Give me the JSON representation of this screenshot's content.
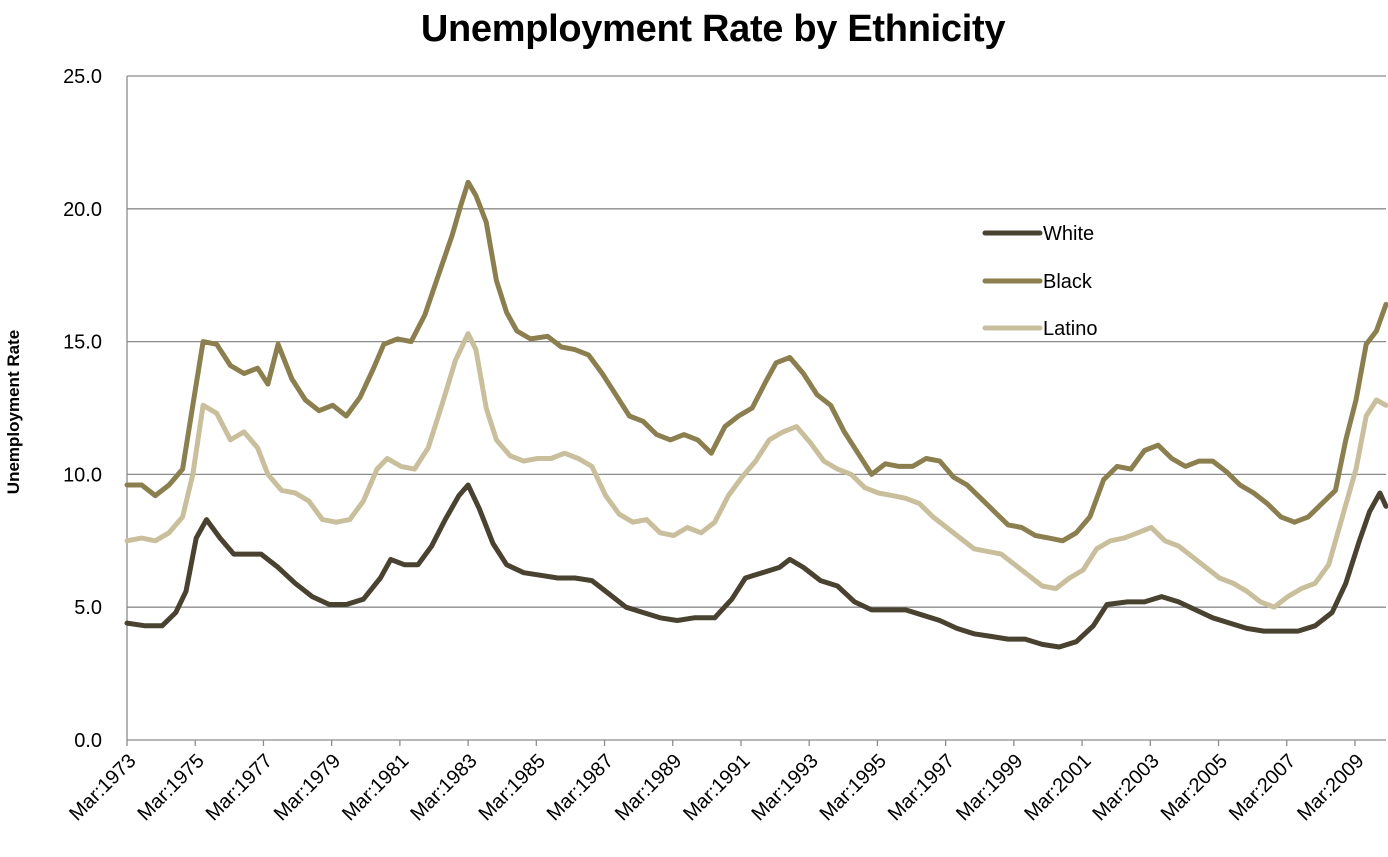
{
  "chart_data": {
    "type": "line",
    "title": "Unemployment Rate by Ethnicity",
    "xlabel": "",
    "ylabel": "Unemployment Rate",
    "ylim": [
      0,
      25
    ],
    "yticks": [
      "0.0",
      "5.0",
      "10.0",
      "15.0",
      "20.0",
      "25.0"
    ],
    "xrange_years": [
      1973.17,
      2010.08
    ],
    "xticks": [
      {
        "label": "Mar:1973",
        "year": 1973.17
      },
      {
        "label": "Mar:1975",
        "year": 1975.17
      },
      {
        "label": "Mar:1977",
        "year": 1977.17
      },
      {
        "label": "Mar:1979",
        "year": 1979.17
      },
      {
        "label": "Mar:1981",
        "year": 1981.17
      },
      {
        "label": "Mar:1983",
        "year": 1983.17
      },
      {
        "label": "Mar:1985",
        "year": 1985.17
      },
      {
        "label": "Mar:1987",
        "year": 1987.17
      },
      {
        "label": "Mar:1989",
        "year": 1989.17
      },
      {
        "label": "Mar:1991",
        "year": 1991.17
      },
      {
        "label": "Mar:1993",
        "year": 1993.17
      },
      {
        "label": "Mar:1995",
        "year": 1995.17
      },
      {
        "label": "Mar:1997",
        "year": 1997.17
      },
      {
        "label": "Mar:1999",
        "year": 1999.17
      },
      {
        "label": "Mar:2001",
        "year": 2001.17
      },
      {
        "label": "Mar:2003",
        "year": 2003.17
      },
      {
        "label": "Mar:2005",
        "year": 2005.17
      },
      {
        "label": "Mar:2007",
        "year": 2007.17
      },
      {
        "label": "Mar:2009",
        "year": 2009.17
      }
    ],
    "grid": true,
    "legend_position": "upper-right",
    "series": [
      {
        "name": "White",
        "color": "#4a4230",
        "points": [
          [
            1973.17,
            4.4
          ],
          [
            1973.7,
            4.3
          ],
          [
            1974.2,
            4.3
          ],
          [
            1974.6,
            4.8
          ],
          [
            1974.9,
            5.6
          ],
          [
            1975.2,
            7.6
          ],
          [
            1975.5,
            8.3
          ],
          [
            1975.9,
            7.6
          ],
          [
            1976.3,
            7.0
          ],
          [
            1976.7,
            7.0
          ],
          [
            1977.1,
            7.0
          ],
          [
            1977.6,
            6.5
          ],
          [
            1978.1,
            5.9
          ],
          [
            1978.6,
            5.4
          ],
          [
            1979.1,
            5.1
          ],
          [
            1979.6,
            5.1
          ],
          [
            1980.1,
            5.3
          ],
          [
            1980.6,
            6.1
          ],
          [
            1980.9,
            6.8
          ],
          [
            1981.3,
            6.6
          ],
          [
            1981.7,
            6.6
          ],
          [
            1982.1,
            7.3
          ],
          [
            1982.5,
            8.3
          ],
          [
            1982.9,
            9.2
          ],
          [
            1983.17,
            9.6
          ],
          [
            1983.5,
            8.7
          ],
          [
            1983.9,
            7.4
          ],
          [
            1984.3,
            6.6
          ],
          [
            1984.8,
            6.3
          ],
          [
            1985.3,
            6.2
          ],
          [
            1985.8,
            6.1
          ],
          [
            1986.3,
            6.1
          ],
          [
            1986.8,
            6.0
          ],
          [
            1987.3,
            5.5
          ],
          [
            1987.8,
            5.0
          ],
          [
            1988.3,
            4.8
          ],
          [
            1988.8,
            4.6
          ],
          [
            1989.3,
            4.5
          ],
          [
            1989.8,
            4.6
          ],
          [
            1990.4,
            4.6
          ],
          [
            1990.9,
            5.3
          ],
          [
            1991.3,
            6.1
          ],
          [
            1991.8,
            6.3
          ],
          [
            1992.3,
            6.5
          ],
          [
            1992.6,
            6.8
          ],
          [
            1993.0,
            6.5
          ],
          [
            1993.5,
            6.0
          ],
          [
            1994.0,
            5.8
          ],
          [
            1994.5,
            5.2
          ],
          [
            1995.0,
            4.9
          ],
          [
            1995.5,
            4.9
          ],
          [
            1996.0,
            4.9
          ],
          [
            1996.5,
            4.7
          ],
          [
            1997.0,
            4.5
          ],
          [
            1997.5,
            4.2
          ],
          [
            1998.0,
            4.0
          ],
          [
            1998.5,
            3.9
          ],
          [
            1999.0,
            3.8
          ],
          [
            1999.5,
            3.8
          ],
          [
            2000.0,
            3.6
          ],
          [
            2000.5,
            3.5
          ],
          [
            2001.0,
            3.7
          ],
          [
            2001.5,
            4.3
          ],
          [
            2001.9,
            5.1
          ],
          [
            2002.5,
            5.2
          ],
          [
            2003.0,
            5.2
          ],
          [
            2003.5,
            5.4
          ],
          [
            2004.0,
            5.2
          ],
          [
            2004.5,
            4.9
          ],
          [
            2005.0,
            4.6
          ],
          [
            2005.5,
            4.4
          ],
          [
            2006.0,
            4.2
          ],
          [
            2006.5,
            4.1
          ],
          [
            2007.0,
            4.1
          ],
          [
            2007.5,
            4.1
          ],
          [
            2008.0,
            4.3
          ],
          [
            2008.5,
            4.8
          ],
          [
            2008.9,
            5.9
          ],
          [
            2009.3,
            7.5
          ],
          [
            2009.6,
            8.6
          ],
          [
            2009.9,
            9.3
          ],
          [
            2010.08,
            8.8
          ]
        ]
      },
      {
        "name": "Black",
        "color": "#8c7f4f",
        "points": [
          [
            1973.17,
            9.6
          ],
          [
            1973.6,
            9.6
          ],
          [
            1974.0,
            9.2
          ],
          [
            1974.4,
            9.6
          ],
          [
            1974.8,
            10.2
          ],
          [
            1975.1,
            12.6
          ],
          [
            1975.4,
            15.0
          ],
          [
            1975.8,
            14.9
          ],
          [
            1976.2,
            14.1
          ],
          [
            1976.6,
            13.8
          ],
          [
            1977.0,
            14.0
          ],
          [
            1977.3,
            13.4
          ],
          [
            1977.6,
            14.9
          ],
          [
            1978.0,
            13.6
          ],
          [
            1978.4,
            12.8
          ],
          [
            1978.8,
            12.4
          ],
          [
            1979.2,
            12.6
          ],
          [
            1979.6,
            12.2
          ],
          [
            1980.0,
            12.9
          ],
          [
            1980.4,
            14.0
          ],
          [
            1980.7,
            14.9
          ],
          [
            1981.1,
            15.1
          ],
          [
            1981.5,
            15.0
          ],
          [
            1981.9,
            16.0
          ],
          [
            1982.3,
            17.5
          ],
          [
            1982.7,
            19.0
          ],
          [
            1982.95,
            20.1
          ],
          [
            1983.17,
            21.0
          ],
          [
            1983.4,
            20.5
          ],
          [
            1983.7,
            19.5
          ],
          [
            1984.0,
            17.3
          ],
          [
            1984.3,
            16.1
          ],
          [
            1984.6,
            15.4
          ],
          [
            1985.0,
            15.1
          ],
          [
            1985.5,
            15.2
          ],
          [
            1985.9,
            14.8
          ],
          [
            1986.3,
            14.7
          ],
          [
            1986.7,
            14.5
          ],
          [
            1987.1,
            13.8
          ],
          [
            1987.5,
            13.0
          ],
          [
            1987.9,
            12.2
          ],
          [
            1988.3,
            12.0
          ],
          [
            1988.7,
            11.5
          ],
          [
            1989.1,
            11.3
          ],
          [
            1989.5,
            11.5
          ],
          [
            1989.9,
            11.3
          ],
          [
            1990.3,
            10.8
          ],
          [
            1990.7,
            11.8
          ],
          [
            1991.1,
            12.2
          ],
          [
            1991.5,
            12.5
          ],
          [
            1991.9,
            13.5
          ],
          [
            1992.2,
            14.2
          ],
          [
            1992.6,
            14.4
          ],
          [
            1993.0,
            13.8
          ],
          [
            1993.4,
            13.0
          ],
          [
            1993.8,
            12.6
          ],
          [
            1994.2,
            11.6
          ],
          [
            1994.6,
            10.8
          ],
          [
            1995.0,
            10.0
          ],
          [
            1995.4,
            10.4
          ],
          [
            1995.8,
            10.3
          ],
          [
            1996.2,
            10.3
          ],
          [
            1996.6,
            10.6
          ],
          [
            1997.0,
            10.5
          ],
          [
            1997.4,
            9.9
          ],
          [
            1997.8,
            9.6
          ],
          [
            1998.2,
            9.1
          ],
          [
            1998.6,
            8.6
          ],
          [
            1999.0,
            8.1
          ],
          [
            1999.4,
            8.0
          ],
          [
            1999.8,
            7.7
          ],
          [
            2000.2,
            7.6
          ],
          [
            2000.6,
            7.5
          ],
          [
            2001.0,
            7.8
          ],
          [
            2001.4,
            8.4
          ],
          [
            2001.8,
            9.8
          ],
          [
            2002.2,
            10.3
          ],
          [
            2002.6,
            10.2
          ],
          [
            2003.0,
            10.9
          ],
          [
            2003.4,
            11.1
          ],
          [
            2003.8,
            10.6
          ],
          [
            2004.2,
            10.3
          ],
          [
            2004.6,
            10.5
          ],
          [
            2005.0,
            10.5
          ],
          [
            2005.4,
            10.1
          ],
          [
            2005.8,
            9.6
          ],
          [
            2006.2,
            9.3
          ],
          [
            2006.6,
            8.9
          ],
          [
            2007.0,
            8.4
          ],
          [
            2007.4,
            8.2
          ],
          [
            2007.8,
            8.4
          ],
          [
            2008.2,
            8.9
          ],
          [
            2008.6,
            9.4
          ],
          [
            2008.9,
            11.3
          ],
          [
            2009.2,
            12.8
          ],
          [
            2009.5,
            14.9
          ],
          [
            2009.8,
            15.4
          ],
          [
            2010.08,
            16.4
          ]
        ]
      },
      {
        "name": "Latino",
        "color": "#c9bf9c",
        "points": [
          [
            1973.17,
            7.5
          ],
          [
            1973.6,
            7.6
          ],
          [
            1974.0,
            7.5
          ],
          [
            1974.4,
            7.8
          ],
          [
            1974.8,
            8.4
          ],
          [
            1975.1,
            10.0
          ],
          [
            1975.4,
            12.6
          ],
          [
            1975.8,
            12.3
          ],
          [
            1976.2,
            11.3
          ],
          [
            1976.6,
            11.6
          ],
          [
            1977.0,
            11.0
          ],
          [
            1977.3,
            10.0
          ],
          [
            1977.7,
            9.4
          ],
          [
            1978.1,
            9.3
          ],
          [
            1978.5,
            9.0
          ],
          [
            1978.9,
            8.3
          ],
          [
            1979.3,
            8.2
          ],
          [
            1979.7,
            8.3
          ],
          [
            1980.1,
            9.0
          ],
          [
            1980.5,
            10.2
          ],
          [
            1980.8,
            10.6
          ],
          [
            1981.2,
            10.3
          ],
          [
            1981.6,
            10.2
          ],
          [
            1982.0,
            11.0
          ],
          [
            1982.4,
            12.6
          ],
          [
            1982.8,
            14.3
          ],
          [
            1983.17,
            15.3
          ],
          [
            1983.4,
            14.7
          ],
          [
            1983.7,
            12.5
          ],
          [
            1984.0,
            11.3
          ],
          [
            1984.4,
            10.7
          ],
          [
            1984.8,
            10.5
          ],
          [
            1985.2,
            10.6
          ],
          [
            1985.6,
            10.6
          ],
          [
            1986.0,
            10.8
          ],
          [
            1986.4,
            10.6
          ],
          [
            1986.8,
            10.3
          ],
          [
            1987.2,
            9.2
          ],
          [
            1987.6,
            8.5
          ],
          [
            1988.0,
            8.2
          ],
          [
            1988.4,
            8.3
          ],
          [
            1988.8,
            7.8
          ],
          [
            1989.2,
            7.7
          ],
          [
            1989.6,
            8.0
          ],
          [
            1990.0,
            7.8
          ],
          [
            1990.4,
            8.2
          ],
          [
            1990.8,
            9.2
          ],
          [
            1991.2,
            9.9
          ],
          [
            1991.6,
            10.5
          ],
          [
            1992.0,
            11.3
          ],
          [
            1992.4,
            11.6
          ],
          [
            1992.8,
            11.8
          ],
          [
            1993.2,
            11.2
          ],
          [
            1993.6,
            10.5
          ],
          [
            1994.0,
            10.2
          ],
          [
            1994.4,
            10.0
          ],
          [
            1994.8,
            9.5
          ],
          [
            1995.2,
            9.3
          ],
          [
            1995.6,
            9.2
          ],
          [
            1996.0,
            9.1
          ],
          [
            1996.4,
            8.9
          ],
          [
            1996.8,
            8.4
          ],
          [
            1997.2,
            8.0
          ],
          [
            1997.6,
            7.6
          ],
          [
            1998.0,
            7.2
          ],
          [
            1998.4,
            7.1
          ],
          [
            1998.8,
            7.0
          ],
          [
            1999.2,
            6.6
          ],
          [
            1999.6,
            6.2
          ],
          [
            2000.0,
            5.8
          ],
          [
            2000.4,
            5.7
          ],
          [
            2000.8,
            6.1
          ],
          [
            2001.2,
            6.4
          ],
          [
            2001.6,
            7.2
          ],
          [
            2002.0,
            7.5
          ],
          [
            2002.4,
            7.6
          ],
          [
            2002.8,
            7.8
          ],
          [
            2003.2,
            8.0
          ],
          [
            2003.6,
            7.5
          ],
          [
            2004.0,
            7.3
          ],
          [
            2004.4,
            6.9
          ],
          [
            2004.8,
            6.5
          ],
          [
            2005.2,
            6.1
          ],
          [
            2005.6,
            5.9
          ],
          [
            2006.0,
            5.6
          ],
          [
            2006.4,
            5.2
          ],
          [
            2006.8,
            5.0
          ],
          [
            2007.2,
            5.4
          ],
          [
            2007.6,
            5.7
          ],
          [
            2008.0,
            5.9
          ],
          [
            2008.4,
            6.6
          ],
          [
            2008.8,
            8.4
          ],
          [
            2009.2,
            10.2
          ],
          [
            2009.5,
            12.2
          ],
          [
            2009.8,
            12.8
          ],
          [
            2010.08,
            12.6
          ]
        ]
      }
    ]
  }
}
